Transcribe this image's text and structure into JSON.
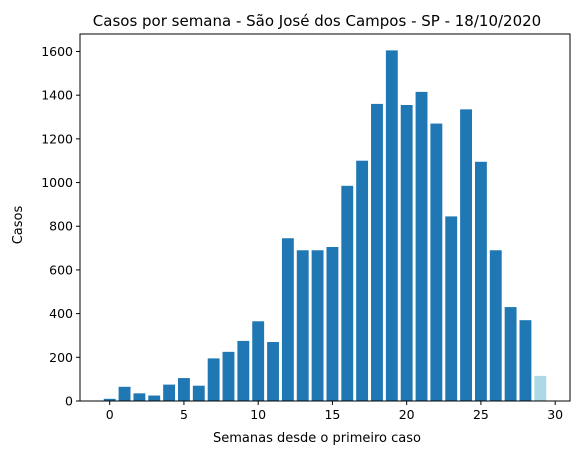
{
  "chart_data": {
    "type": "bar",
    "title": "Casos por semana - São José dos Campos - SP - 18/10/2020",
    "xlabel": "Semanas desde o primeiro caso",
    "ylabel": "Casos",
    "xlim": [
      -2,
      31
    ],
    "ylim": [
      0,
      1680
    ],
    "xticks": [
      0,
      5,
      10,
      15,
      20,
      25,
      30
    ],
    "yticks": [
      0,
      200,
      400,
      600,
      800,
      1000,
      1200,
      1400,
      1600
    ],
    "bar_color": "#1f77b4",
    "highlight_color": "#add8e6",
    "highlight_index": 29,
    "x": [
      0,
      1,
      2,
      3,
      4,
      5,
      6,
      7,
      8,
      9,
      10,
      11,
      12,
      13,
      14,
      15,
      16,
      17,
      18,
      19,
      20,
      21,
      22,
      23,
      24,
      25,
      26,
      27,
      28,
      29
    ],
    "values": [
      10,
      65,
      35,
      25,
      75,
      105,
      70,
      195,
      225,
      275,
      365,
      270,
      745,
      690,
      690,
      705,
      985,
      1100,
      1360,
      1605,
      1355,
      1415,
      1270,
      845,
      1335,
      1095,
      690,
      430,
      370,
      115
    ],
    "grid": false,
    "legend": "none"
  }
}
